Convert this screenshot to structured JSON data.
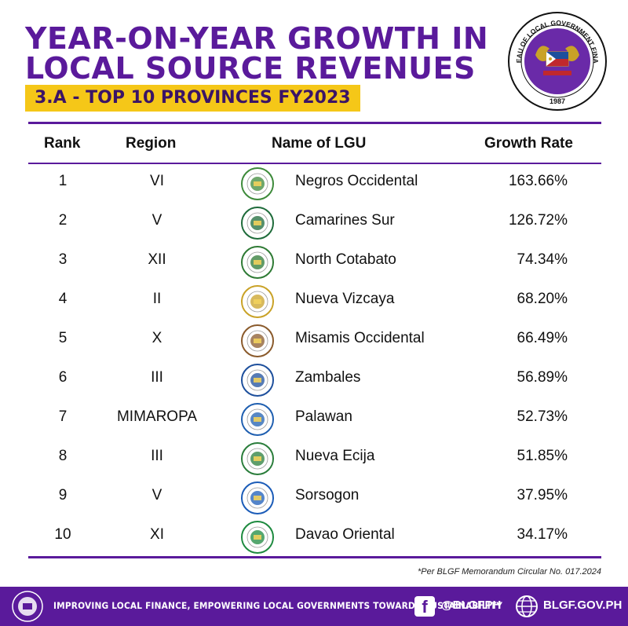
{
  "header": {
    "title_line1": "YEAR-ON-YEAR GROWTH IN",
    "title_line2": "LOCAL SOURCE REVENUES",
    "subtitle": "3.A - TOP 10 PROVINCES FY2023",
    "seal_text": "BUREAU OF LOCAL GOVERNMENT FINANCE",
    "seal_year": "1987"
  },
  "table": {
    "columns": [
      "Rank",
      "Region",
      "Name of LGU",
      "Growth Rate"
    ],
    "rows": [
      {
        "rank": "1",
        "region": "VI",
        "lgu": "Negros Occidental",
        "rate": "163.66%"
      },
      {
        "rank": "2",
        "region": "V",
        "lgu": "Camarines Sur",
        "rate": "126.72%"
      },
      {
        "rank": "3",
        "region": "XII",
        "lgu": "North Cotabato",
        "rate": "74.34%"
      },
      {
        "rank": "4",
        "region": "II",
        "lgu": "Nueva Vizcaya",
        "rate": "68.20%"
      },
      {
        "rank": "5",
        "region": "X",
        "lgu": "Misamis Occidental",
        "rate": "66.49%"
      },
      {
        "rank": "6",
        "region": "III",
        "lgu": "Zambales",
        "rate": "56.89%"
      },
      {
        "rank": "7",
        "region": "MIMAROPA",
        "lgu": "Palawan",
        "rate": "52.73%"
      },
      {
        "rank": "8",
        "region": "III",
        "lgu": "Nueva Ecija",
        "rate": "51.85%"
      },
      {
        "rank": "9",
        "region": "V",
        "lgu": "Sorsogon",
        "rate": "37.95%"
      },
      {
        "rank": "10",
        "region": "XI",
        "lgu": "Davao Oriental",
        "rate": "34.17%"
      }
    ]
  },
  "footnote": "*Per BLGF Memorandum Circular No. 017.2024",
  "footer": {
    "tagline": "IMPROVING LOCAL FINANCE, EMPOWERING LOCAL GOVERNMENTS TOWARDS SUSTAINABILITY",
    "facebook_icon": "facebook-icon",
    "handle": "@BLGFPH",
    "globe_icon": "globe-icon",
    "website": "BLGF.GOV.PH"
  },
  "colors": {
    "purple": "#5a1a9b",
    "yellow": "#f5c718",
    "seal_gold": "#c9a227",
    "seal_red": "#c0282d"
  },
  "logo_colors": [
    "#3d8a3a",
    "#1e6b3a",
    "#2e7a34",
    "#c9a227",
    "#8a5a2b",
    "#1d4f9c",
    "#1f5fb0",
    "#2a7d3b",
    "#1b5cb8",
    "#1d8a3f"
  ]
}
